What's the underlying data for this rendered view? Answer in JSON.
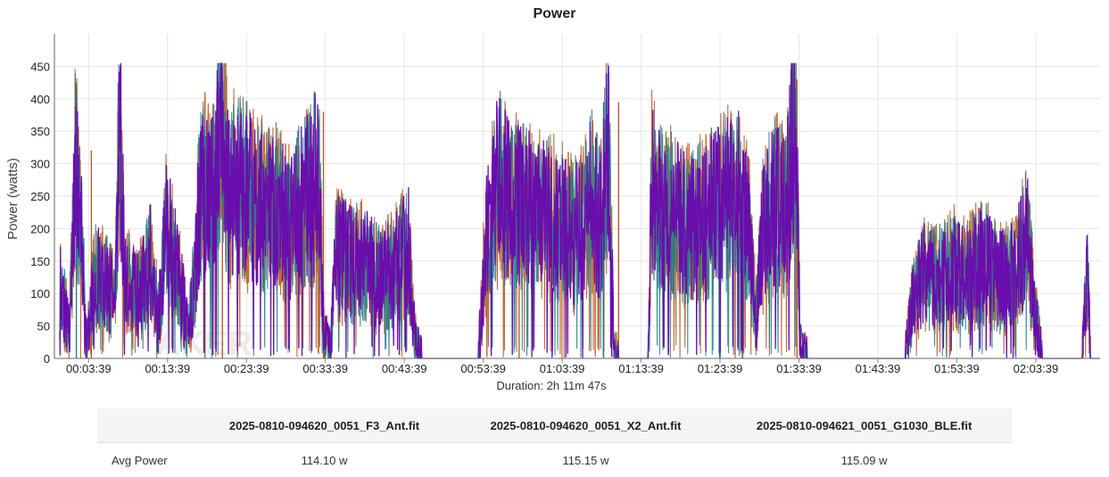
{
  "title": "Power",
  "watermark": "AKER",
  "chart_data": {
    "type": "line",
    "title": "Power",
    "ylabel": "Power (watts)",
    "xlabel": "Duration: 2h 11m 47s",
    "ylim": [
      0,
      500
    ],
    "yticks": [
      0,
      50,
      100,
      150,
      200,
      250,
      300,
      350,
      400,
      450
    ],
    "xlim_minutes": [
      0,
      131.8
    ],
    "xticks": [
      "00:03:39",
      "00:13:39",
      "00:23:39",
      "00:33:39",
      "00:43:39",
      "00:53:39",
      "01:03:39",
      "01:13:39",
      "01:23:39",
      "01:33:39",
      "01:43:39",
      "01:53:39",
      "02:03:39"
    ],
    "grid": true,
    "series": [
      {
        "name": "2025-0810-094620_0051_F3_Ant.fit",
        "color": "#b5541c",
        "segments": [
          [
            0,
            0,
            120
          ],
          [
            1,
            2,
            290
          ],
          [
            2,
            7,
            130
          ],
          [
            3,
            11,
            170
          ],
          [
            4,
            13,
            150
          ],
          [
            5,
            17,
            180
          ],
          [
            6,
            20,
            280
          ],
          [
            7,
            28,
            210
          ],
          [
            8,
            33,
            200
          ],
          [
            9,
            36,
            170
          ],
          [
            10,
            43,
            120
          ],
          [
            11,
            47,
            0
          ],
          [
            12,
            53,
            220
          ],
          [
            13,
            64,
            230
          ],
          [
            14,
            70,
            0
          ],
          [
            15,
            75,
            230
          ],
          [
            16,
            87,
            210
          ],
          [
            17,
            93,
            0
          ],
          [
            18,
            108,
            130
          ],
          [
            19,
            122,
            100
          ],
          [
            20,
            130,
            0
          ]
        ],
        "spikes": [
          [
            3,
            4,
            320
          ],
          [
            18.4,
            410
          ],
          [
            20.6,
            450
          ],
          [
            33.4,
            380
          ],
          [
            58.2,
            310
          ],
          [
            70.8,
            395
          ],
          [
            93.4,
            430
          ]
        ]
      },
      {
        "name": "2025-0810-094620_0051_X2_Ant.fit",
        "color": "#1a7a8c",
        "segments": [],
        "spikes": [
          [
            2.1,
            325
          ],
          [
            68.9,
            395
          ],
          [
            83.6,
            345
          ]
        ]
      },
      {
        "name": "2025-0810-094621_0051_G1030_BLE.fit",
        "color": "#6a0dad",
        "segments": [],
        "spikes": []
      }
    ]
  },
  "table": {
    "headers": [
      "",
      "2025-0810-094620_0051_F3_Ant.fit",
      "2025-0810-094620_0051_X2_Ant.fit",
      "2025-0810-094621_0051_G1030_BLE.fit"
    ],
    "rows": [
      {
        "label": "Avg Power",
        "values": [
          "114.10 w",
          "115.15 w",
          "115.09 w"
        ]
      }
    ]
  }
}
